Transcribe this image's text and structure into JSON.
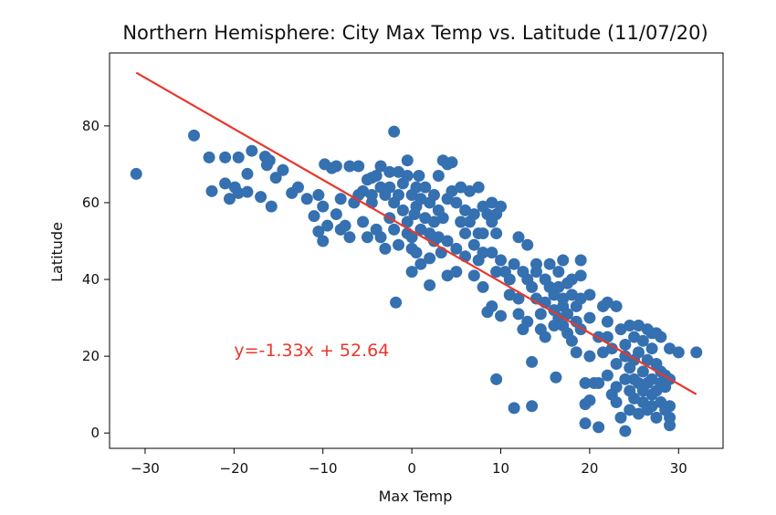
{
  "chart_data": {
    "type": "scatter",
    "title": "Northern Hemisphere: City Max Temp vs. Latitude (11/07/20)",
    "xlabel": "Max Temp",
    "ylabel": "Latitude",
    "xlim": [
      -34,
      35
    ],
    "ylim": [
      -4,
      99
    ],
    "xticks": [
      -30,
      -20,
      -10,
      0,
      10,
      20,
      30
    ],
    "yticks": [
      0,
      20,
      40,
      60,
      80
    ],
    "grid": false,
    "point_color": "#3570b0",
    "line_color": "#e8372a",
    "regression": {
      "slope": -1.33,
      "intercept": 52.64,
      "x_range": [
        -31,
        32
      ],
      "equation_label": "y=-1.33x + 52.64",
      "label_at": [
        -20,
        20
      ]
    },
    "points": [
      [
        -31,
        67.5
      ],
      [
        -24.5,
        77.5
      ],
      [
        -22.8,
        71.8
      ],
      [
        -22.5,
        63
      ],
      [
        -21,
        71.8
      ],
      [
        -21,
        65
      ],
      [
        -20.5,
        61
      ],
      [
        -19.9,
        64
      ],
      [
        -19.5,
        71.8
      ],
      [
        -19.5,
        62.5
      ],
      [
        -18.5,
        62.8
      ],
      [
        -18.5,
        67.5
      ],
      [
        -18,
        73.5
      ],
      [
        -17,
        61.5
      ],
      [
        -16.5,
        72
      ],
      [
        -16.3,
        69.8
      ],
      [
        -16,
        71
      ],
      [
        -15.8,
        59
      ],
      [
        -15.3,
        66.5
      ],
      [
        -14.5,
        68.5
      ],
      [
        -13.5,
        62.5
      ],
      [
        -12.8,
        64
      ],
      [
        -11.8,
        61
      ],
      [
        -11,
        56.5
      ],
      [
        -10.5,
        52.5
      ],
      [
        -10.5,
        62
      ],
      [
        -10,
        50
      ],
      [
        -10,
        59
      ],
      [
        -9.8,
        70
      ],
      [
        -9.5,
        54
      ],
      [
        -9,
        69
      ],
      [
        -8.5,
        69.5
      ],
      [
        -8.5,
        57
      ],
      [
        -8,
        53
      ],
      [
        -8,
        61
      ],
      [
        -7.5,
        54
      ],
      [
        -7,
        51
      ],
      [
        -7,
        69.5
      ],
      [
        -6.5,
        60
      ],
      [
        -6,
        62
      ],
      [
        -6,
        69.5
      ],
      [
        -5.5,
        63
      ],
      [
        -5.5,
        55
      ],
      [
        -5,
        66
      ],
      [
        -5,
        51
      ],
      [
        -4.5,
        66.5
      ],
      [
        -4.5,
        62
      ],
      [
        -4.5,
        60
      ],
      [
        -4,
        67
      ],
      [
        -4,
        53
      ],
      [
        -3.5,
        64
      ],
      [
        -3.5,
        51
      ],
      [
        -3.5,
        69.5
      ],
      [
        -3,
        62
      ],
      [
        -3,
        48
      ],
      [
        -2.5,
        68
      ],
      [
        -2.5,
        56
      ],
      [
        -2.5,
        64
      ],
      [
        -2,
        78.5
      ],
      [
        -2,
        60
      ],
      [
        -2,
        53
      ],
      [
        -1.8,
        34
      ],
      [
        -1.5,
        62
      ],
      [
        -1.5,
        68
      ],
      [
        -1.5,
        49
      ],
      [
        -1,
        65
      ],
      [
        -1,
        58
      ],
      [
        -0.5,
        67
      ],
      [
        -0.5,
        71
      ],
      [
        -0.5,
        55
      ],
      [
        -0.5,
        52
      ],
      [
        0,
        51
      ],
      [
        0,
        62
      ],
      [
        0,
        48
      ],
      [
        0,
        42
      ],
      [
        0.3,
        57
      ],
      [
        0.5,
        64
      ],
      [
        0.5,
        59
      ],
      [
        0.5,
        47
      ],
      [
        0.8,
        67
      ],
      [
        1,
        61
      ],
      [
        1,
        53
      ],
      [
        1,
        44
      ],
      [
        1.5,
        64
      ],
      [
        1.5,
        56
      ],
      [
        2,
        52
      ],
      [
        2,
        60
      ],
      [
        2,
        45.5
      ],
      [
        2,
        38.5
      ],
      [
        2.5,
        62
      ],
      [
        2.5,
        50
      ],
      [
        2.5,
        55
      ],
      [
        3,
        67
      ],
      [
        3,
        58
      ],
      [
        3,
        51
      ],
      [
        3.3,
        47
      ],
      [
        3.5,
        71
      ],
      [
        3.5,
        56
      ],
      [
        4,
        70
      ],
      [
        4,
        61
      ],
      [
        4,
        50
      ],
      [
        4,
        41
      ],
      [
        4.5,
        70.5
      ],
      [
        4.5,
        63
      ],
      [
        5,
        60
      ],
      [
        5,
        48
      ],
      [
        5,
        42
      ],
      [
        5.5,
        64
      ],
      [
        5.5,
        55
      ],
      [
        6,
        52
      ],
      [
        6,
        58
      ],
      [
        6,
        46
      ],
      [
        6.5,
        63
      ],
      [
        6.5,
        55
      ],
      [
        7,
        57
      ],
      [
        7,
        49
      ],
      [
        7,
        41
      ],
      [
        7.5,
        64
      ],
      [
        7.5,
        52
      ],
      [
        7.5,
        45
      ],
      [
        8,
        59
      ],
      [
        8,
        52
      ],
      [
        8,
        47
      ],
      [
        8,
        38
      ],
      [
        8.5,
        57
      ],
      [
        8.5,
        31.5
      ],
      [
        9,
        55
      ],
      [
        9,
        60
      ],
      [
        9,
        47
      ],
      [
        9,
        33
      ],
      [
        9.5,
        57
      ],
      [
        9.5,
        52
      ],
      [
        9.5,
        42
      ],
      [
        9.5,
        14
      ],
      [
        10,
        59
      ],
      [
        10,
        45
      ],
      [
        10,
        30.5
      ],
      [
        10.5,
        42
      ],
      [
        11,
        40
      ],
      [
        11,
        36
      ],
      [
        11.5,
        6.5
      ],
      [
        11.5,
        44
      ],
      [
        12,
        35
      ],
      [
        12,
        51
      ],
      [
        12,
        31
      ],
      [
        12.5,
        42
      ],
      [
        12.5,
        27
      ],
      [
        13,
        49
      ],
      [
        13,
        40
      ],
      [
        13,
        29
      ],
      [
        13.5,
        18.5
      ],
      [
        13.5,
        7
      ],
      [
        13.5,
        38
      ],
      [
        14,
        42
      ],
      [
        14,
        35
      ],
      [
        14,
        44
      ],
      [
        14.5,
        31
      ],
      [
        14.5,
        27
      ],
      [
        15,
        40
      ],
      [
        15,
        34
      ],
      [
        15,
        25
      ],
      [
        15.5,
        38
      ],
      [
        15.5,
        44
      ],
      [
        16,
        36
      ],
      [
        16,
        32
      ],
      [
        16,
        28
      ],
      [
        16.2,
        14.5
      ],
      [
        16.5,
        42
      ],
      [
        16.5,
        30
      ],
      [
        16.5,
        38
      ],
      [
        17,
        45
      ],
      [
        17,
        35
      ],
      [
        17,
        28
      ],
      [
        17,
        33
      ],
      [
        17.5,
        39
      ],
      [
        17.5,
        31
      ],
      [
        17.5,
        26
      ],
      [
        18,
        36
      ],
      [
        18,
        24
      ],
      [
        18,
        40
      ],
      [
        18.5,
        33
      ],
      [
        18.5,
        21
      ],
      [
        18.5,
        29
      ],
      [
        19,
        45
      ],
      [
        19,
        35
      ],
      [
        19,
        41
      ],
      [
        19,
        27
      ],
      [
        19.5,
        7.5
      ],
      [
        19.5,
        13
      ],
      [
        19.5,
        2.5
      ],
      [
        20,
        36
      ],
      [
        20,
        30
      ],
      [
        20,
        8.5
      ],
      [
        20,
        20
      ],
      [
        20.5,
        13
      ],
      [
        21,
        1.5
      ],
      [
        21,
        13
      ],
      [
        21,
        25
      ],
      [
        21.5,
        33
      ],
      [
        21.5,
        21
      ],
      [
        22,
        34
      ],
      [
        22,
        29
      ],
      [
        22,
        15
      ],
      [
        22,
        25
      ],
      [
        22.5,
        22
      ],
      [
        22.5,
        10
      ],
      [
        23,
        33
      ],
      [
        23,
        18
      ],
      [
        23,
        8
      ],
      [
        23,
        12
      ],
      [
        23.5,
        27
      ],
      [
        23.5,
        4
      ],
      [
        24,
        23
      ],
      [
        24,
        14
      ],
      [
        24,
        0.5
      ],
      [
        24,
        20
      ],
      [
        24.5,
        28
      ],
      [
        24.5,
        17
      ],
      [
        24.5,
        6
      ],
      [
        24.5,
        11
      ],
      [
        25,
        25
      ],
      [
        25,
        19
      ],
      [
        25,
        9
      ],
      [
        25,
        14
      ],
      [
        25.5,
        28
      ],
      [
        25.5,
        21
      ],
      [
        25.5,
        13
      ],
      [
        25.5,
        5
      ],
      [
        26,
        24
      ],
      [
        26,
        16
      ],
      [
        26,
        8
      ],
      [
        26,
        11
      ],
      [
        26.5,
        27
      ],
      [
        26.5,
        19
      ],
      [
        26.5,
        13
      ],
      [
        26.5,
        6
      ],
      [
        27,
        26
      ],
      [
        27,
        22
      ],
      [
        27,
        14
      ],
      [
        27,
        7
      ],
      [
        27,
        10
      ],
      [
        27.5,
        26
      ],
      [
        27.5,
        18
      ],
      [
        27.5,
        11
      ],
      [
        27.5,
        4
      ],
      [
        28,
        25
      ],
      [
        28,
        16
      ],
      [
        28,
        8
      ],
      [
        28,
        13
      ],
      [
        28.5,
        15
      ],
      [
        28.5,
        6
      ],
      [
        28.5,
        12
      ],
      [
        29,
        22
      ],
      [
        29,
        14
      ],
      [
        29,
        7
      ],
      [
        29,
        2
      ],
      [
        29,
        4
      ],
      [
        30,
        21
      ],
      [
        32,
        21
      ]
    ]
  }
}
